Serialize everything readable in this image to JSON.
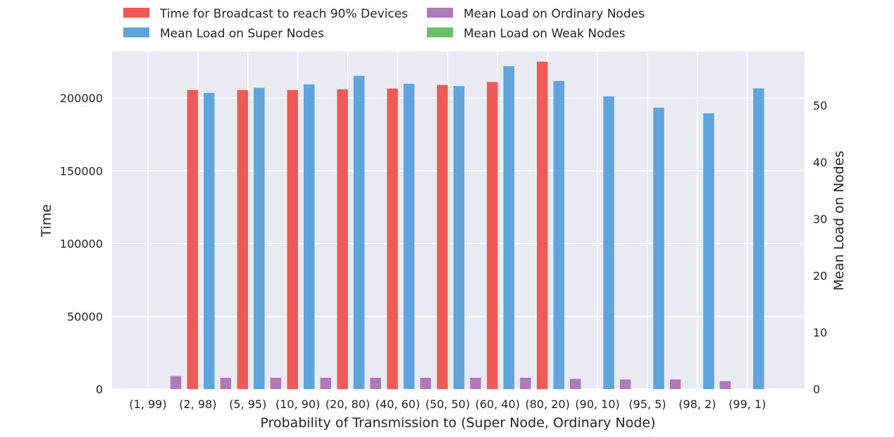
{
  "chart_data": {
    "type": "bar",
    "categories": [
      "(1, 99)",
      "(2, 98)",
      "(5, 95)",
      "(10, 90)",
      "(20, 80)",
      "(40, 60)",
      "(50, 50)",
      "(60, 40)",
      "(80, 20)",
      "(90, 10)",
      "(95, 5)",
      "(98, 2)",
      "(99, 1)"
    ],
    "xlabel": "Probability of Transmission to (Super Node, Ordinary Node)",
    "ylabel_left": "Time",
    "ylabel_right": "Mean Load on Nodes",
    "ylim_left": [
      0,
      232000
    ],
    "ylim_right": [
      0,
      59.5
    ],
    "yticks_left": [
      0,
      50000,
      100000,
      150000,
      200000
    ],
    "yticks_right": [
      0,
      10,
      20,
      30,
      40,
      50
    ],
    "grid": true,
    "legend_position": "top-center",
    "series": [
      {
        "name": "Time for Broadcast to reach 90% Devices",
        "axis": "left",
        "color": "#f05a56",
        "values": [
          null,
          205500,
          205500,
          205500,
          206000,
          206500,
          209000,
          211000,
          225000,
          null,
          null,
          null,
          null
        ]
      },
      {
        "name": "Mean Load on Super Nodes",
        "axis": "right",
        "color": "#5fa5dc",
        "values": [
          null,
          52.2,
          53.1,
          53.7,
          55.2,
          53.8,
          53.4,
          56.9,
          54.3,
          51.6,
          49.6,
          48.6,
          53.0
        ]
      },
      {
        "name": "Mean Load on Ordinary Nodes",
        "axis": "right",
        "color": "#b07ab8",
        "values": [
          2.3,
          2.0,
          2.0,
          2.0,
          2.0,
          2.0,
          2.0,
          2.0,
          1.8,
          1.7,
          1.7,
          1.4,
          null
        ]
      },
      {
        "name": "Mean Load on Weak Nodes",
        "axis": "right",
        "color": "#66c06c",
        "values": [
          null,
          null,
          null,
          null,
          null,
          null,
          null,
          null,
          null,
          null,
          null,
          null,
          null
        ]
      }
    ]
  }
}
